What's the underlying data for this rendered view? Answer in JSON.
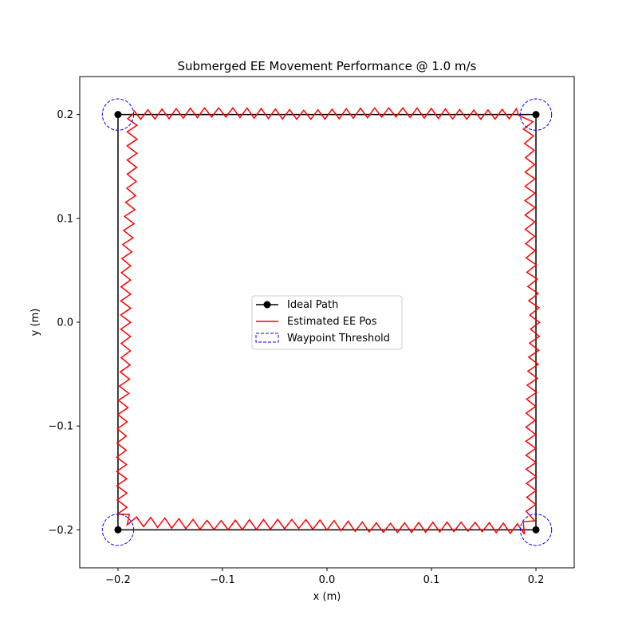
{
  "chart_data": {
    "type": "line",
    "title": "Submerged EE Movement Performance @ 1.0 m/s",
    "xlabel": "x (m)",
    "ylabel": "y (m)",
    "xlim": [
      -0.2366,
      0.2366
    ],
    "ylim": [
      -0.2366,
      0.2366
    ],
    "xticks": [
      -0.2,
      -0.1,
      0.0,
      0.1,
      0.2
    ],
    "yticks": [
      -0.2,
      -0.1,
      0.0,
      0.1,
      0.2
    ],
    "xtick_labels": [
      "−0.2",
      "−0.1",
      "0.0",
      "0.1",
      "0.2"
    ],
    "ytick_labels": [
      "−0.2",
      "−0.1",
      "0.0",
      "0.1",
      "0.2"
    ],
    "grid": false,
    "legend_placement": "center",
    "series": [
      {
        "name": "Ideal Path",
        "color": "#000000",
        "style": "solid line with circle markers",
        "x": [
          -0.2,
          0.2,
          0.2,
          -0.2,
          -0.2
        ],
        "y": [
          0.2,
          0.2,
          -0.2,
          -0.2,
          0.2
        ]
      },
      {
        "name": "Estimated EE Pos",
        "color": "#ff0000",
        "style": "solid line with high-frequency oscillation (amplitude about 0.005 m)",
        "x": [
          -0.185,
          0.188,
          0.192,
          0.198,
          0.194,
          0.189,
          -0.189,
          -0.197,
          -0.193,
          -0.186,
          -0.185
        ],
        "y": [
          0.201,
          0.201,
          0.193,
          0.0,
          -0.189,
          -0.199,
          -0.193,
          -0.185,
          0.0,
          0.19,
          0.201
        ]
      },
      {
        "name": "Waypoint Threshold",
        "color": "#0000ff",
        "style": "dashed circles",
        "radius": 0.015,
        "centers": [
          [
            -0.2,
            0.2
          ],
          [
            0.2,
            0.2
          ],
          [
            0.2,
            -0.2
          ],
          [
            -0.2,
            -0.2
          ]
        ]
      }
    ],
    "legend_entries": [
      "Ideal Path",
      "Estimated EE Pos",
      "Waypoint Threshold"
    ]
  }
}
